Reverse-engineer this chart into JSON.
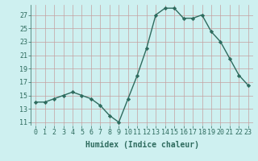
{
  "x": [
    0,
    1,
    2,
    3,
    4,
    5,
    6,
    7,
    8,
    9,
    10,
    11,
    12,
    13,
    14,
    15,
    16,
    17,
    18,
    19,
    20,
    21,
    22,
    23
  ],
  "y": [
    14,
    14,
    14.5,
    15,
    15.5,
    15,
    14.5,
    13.5,
    12,
    11,
    14.5,
    18,
    22,
    27,
    28,
    28,
    26.5,
    26.5,
    27,
    24.5,
    23,
    20.5,
    18,
    16.5
  ],
  "line_color": "#2e6b5e",
  "marker": "D",
  "marker_size": 2.2,
  "bg_color": "#cef0f0",
  "grid_color": "#c4a0a0",
  "xlabel": "Humidex (Indice chaleur)",
  "xlabel_fontsize": 7,
  "xticks": [
    0,
    1,
    2,
    3,
    4,
    5,
    6,
    7,
    8,
    9,
    10,
    11,
    12,
    13,
    14,
    15,
    16,
    17,
    18,
    19,
    20,
    21,
    22,
    23
  ],
  "yticks": [
    11,
    13,
    15,
    17,
    19,
    21,
    23,
    25,
    27
  ],
  "ylim": [
    10.5,
    28.5
  ],
  "xlim": [
    -0.5,
    23.5
  ],
  "tick_fontsize": 6,
  "linewidth": 1.0
}
